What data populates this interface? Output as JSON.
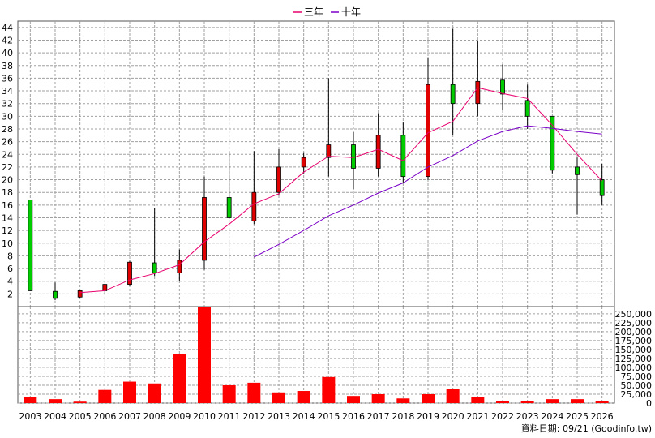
{
  "chart_data": [
    {
      "type": "candlestick",
      "legend": {
        "position": "top-center",
        "entries": [
          "三年",
          "十年"
        ]
      },
      "x": [
        "2003",
        "2004",
        "2005",
        "2006",
        "2007",
        "2008",
        "2009",
        "2010",
        "2011",
        "2012",
        "2013",
        "2014",
        "2015",
        "2016",
        "2017",
        "2018",
        "2019",
        "2020",
        "2021",
        "2022",
        "2023",
        "2024",
        "2025",
        "2026"
      ],
      "ylim": [
        0,
        45
      ],
      "yticks": [
        2,
        4,
        6,
        8,
        10,
        12,
        14,
        16,
        18,
        20,
        22,
        24,
        26,
        28,
        30,
        32,
        34,
        36,
        38,
        40,
        42,
        44
      ],
      "grid": true,
      "colors": {
        "up": "#e00000",
        "down": "#00cc00",
        "three_year": "#e8006e",
        "ten_year": "#7b00c8"
      },
      "candles": [
        {
          "open": 2.5,
          "close": 16.8,
          "high": 16.8,
          "low": 2.5
        },
        {
          "open": 1.3,
          "close": 2.4,
          "high": 3.8,
          "low": 1.0
        },
        {
          "open": 2.5,
          "close": 1.5,
          "high": 2.6,
          "low": 1.3
        },
        {
          "open": 3.5,
          "close": 2.5,
          "high": 3.6,
          "low": 2.0
        },
        {
          "open": 7.0,
          "close": 3.5,
          "high": 7.2,
          "low": 3.3
        },
        {
          "open": 5.3,
          "close": 6.9,
          "high": 15.5,
          "low": 4.8
        },
        {
          "open": 7.3,
          "close": 5.3,
          "high": 9.0,
          "low": 4.0
        },
        {
          "open": 17.2,
          "close": 7.3,
          "high": 20.5,
          "low": 5.8
        },
        {
          "open": 14.0,
          "close": 17.2,
          "high": 24.5,
          "low": 13.8
        },
        {
          "open": 18.0,
          "close": 13.5,
          "high": 24.5,
          "low": 13.0
        },
        {
          "open": 22.0,
          "close": 18.0,
          "high": 24.8,
          "low": 17.5
        },
        {
          "open": 23.5,
          "close": 22.0,
          "high": 24.2,
          "low": 21.0
        },
        {
          "open": 25.5,
          "close": 23.5,
          "high": 36.0,
          "low": 20.5
        },
        {
          "open": 21.8,
          "close": 25.5,
          "high": 27.5,
          "low": 18.5
        },
        {
          "open": 27.0,
          "close": 21.8,
          "high": 30.5,
          "low": 20.5
        },
        {
          "open": 20.5,
          "close": 27.0,
          "high": 29.0,
          "low": 19.5
        },
        {
          "open": 35.0,
          "close": 20.5,
          "high": 39.3,
          "low": 20.0
        },
        {
          "open": 32.0,
          "close": 35.0,
          "high": 43.8,
          "low": 27.0
        },
        {
          "open": 35.5,
          "close": 32.0,
          "high": 41.8,
          "low": 30.0
        },
        {
          "open": 33.5,
          "close": 35.7,
          "high": 38.2,
          "low": 31.0
        },
        {
          "open": 30.0,
          "close": 32.5,
          "high": 35.0,
          "low": 28.0
        },
        {
          "open": 21.5,
          "close": 30.0,
          "high": 30.0,
          "low": 21.0
        },
        {
          "open": 20.8,
          "close": 22.0,
          "high": 23.5,
          "low": 14.5
        },
        {
          "open": 17.5,
          "close": 20.0,
          "high": 22.5,
          "low": 16.0
        }
      ],
      "series": [
        {
          "name": "三年",
          "values": [
            null,
            null,
            2.2,
            2.5,
            4.2,
            5.2,
            6.6,
            10.2,
            13.0,
            16.2,
            17.8,
            21.2,
            23.7,
            23.5,
            24.8,
            23.0,
            27.4,
            29.2,
            34.5,
            33.6,
            32.8,
            28.6,
            24.0,
            19.8
          ]
        },
        {
          "name": "十年",
          "values": [
            null,
            null,
            null,
            null,
            null,
            null,
            null,
            null,
            null,
            7.8,
            9.8,
            12.0,
            14.3,
            16.0,
            17.9,
            19.5,
            22.0,
            23.8,
            26.1,
            27.6,
            28.5,
            28.1,
            27.6,
            27.2
          ]
        }
      ]
    },
    {
      "type": "bar",
      "categories": [
        "2003",
        "2004",
        "2005",
        "2006",
        "2007",
        "2008",
        "2009",
        "2010",
        "2011",
        "2012",
        "2013",
        "2014",
        "2015",
        "2016",
        "2017",
        "2018",
        "2019",
        "2020",
        "2021",
        "2022",
        "2023",
        "2024",
        "2025",
        "2026"
      ],
      "values": [
        17000,
        11000,
        4000,
        37000,
        60000,
        55000,
        138000,
        268000,
        50000,
        57000,
        30000,
        34000,
        73000,
        20000,
        25000,
        13000,
        25000,
        40000,
        16000,
        5000,
        5000,
        11000,
        11000,
        5000
      ],
      "ylim": [
        0,
        270000
      ],
      "yticks": [
        "0",
        "25,000",
        "50,000",
        "75,000",
        "100,000",
        "125,000",
        "150,000",
        "175,000",
        "200,000",
        "225,000",
        "250,000"
      ],
      "color": "#ff0000",
      "footnote": "資料日期: 09/21  (Goodinfo.tw)"
    }
  ]
}
